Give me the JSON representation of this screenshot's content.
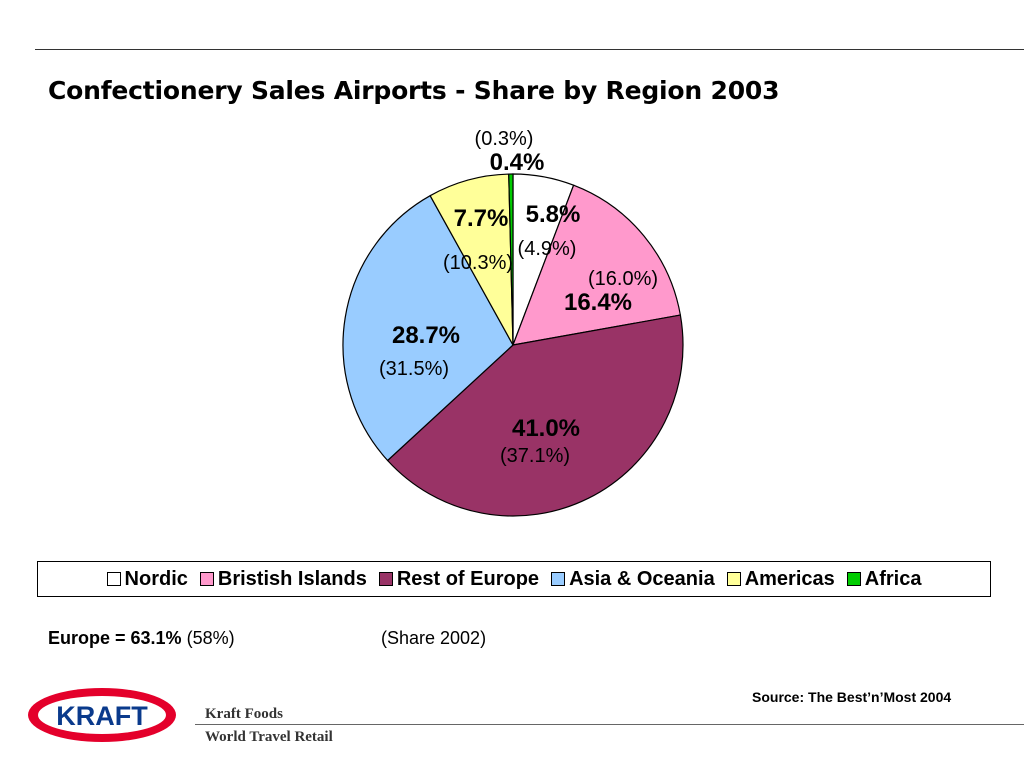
{
  "slide": {
    "title": "Confectionery Sales Airports - Share by Region 2003",
    "europe_summary_bold": "Europe = 63.1%",
    "europe_summary_prev": "(58%)",
    "share_note": "(Share 2002)",
    "source": "Source: The Best’n’Most 2004",
    "footer_line1": "Kraft Foods",
    "footer_line2": "World Travel Retail",
    "logo_text": "KRAFT"
  },
  "colors": {
    "logo_red": "#E4002B",
    "logo_blue": "#0A3A8C"
  },
  "chart_data": {
    "type": "pie",
    "title": "Confectionery Sales Airports - Share by Region 2003",
    "legend_position": "bottom",
    "series": [
      {
        "name": "Nordic",
        "value": 5.8,
        "label": "5.8%",
        "prev_label": "(4.9%)",
        "color": "#FFFFFF"
      },
      {
        "name": "Bristish Islands",
        "value": 16.4,
        "label": "16.4%",
        "prev_label": "(16.0%)",
        "color": "#FF99CC"
      },
      {
        "name": "Rest of Europe",
        "value": 41.0,
        "label": "41.0%",
        "prev_label": "(37.1%)",
        "color": "#993366"
      },
      {
        "name": "Asia & Oceania",
        "value": 28.7,
        "label": "28.7%",
        "prev_label": "(31.5%)",
        "color": "#99CCFF"
      },
      {
        "name": "Americas",
        "value": 7.7,
        "label": "7.7%",
        "prev_label": "(10.3%)",
        "color": "#FFFF99"
      },
      {
        "name": "Africa",
        "value": 0.4,
        "label": "0.4%",
        "prev_label": "(0.3%)",
        "color": "#00CC00"
      }
    ]
  }
}
